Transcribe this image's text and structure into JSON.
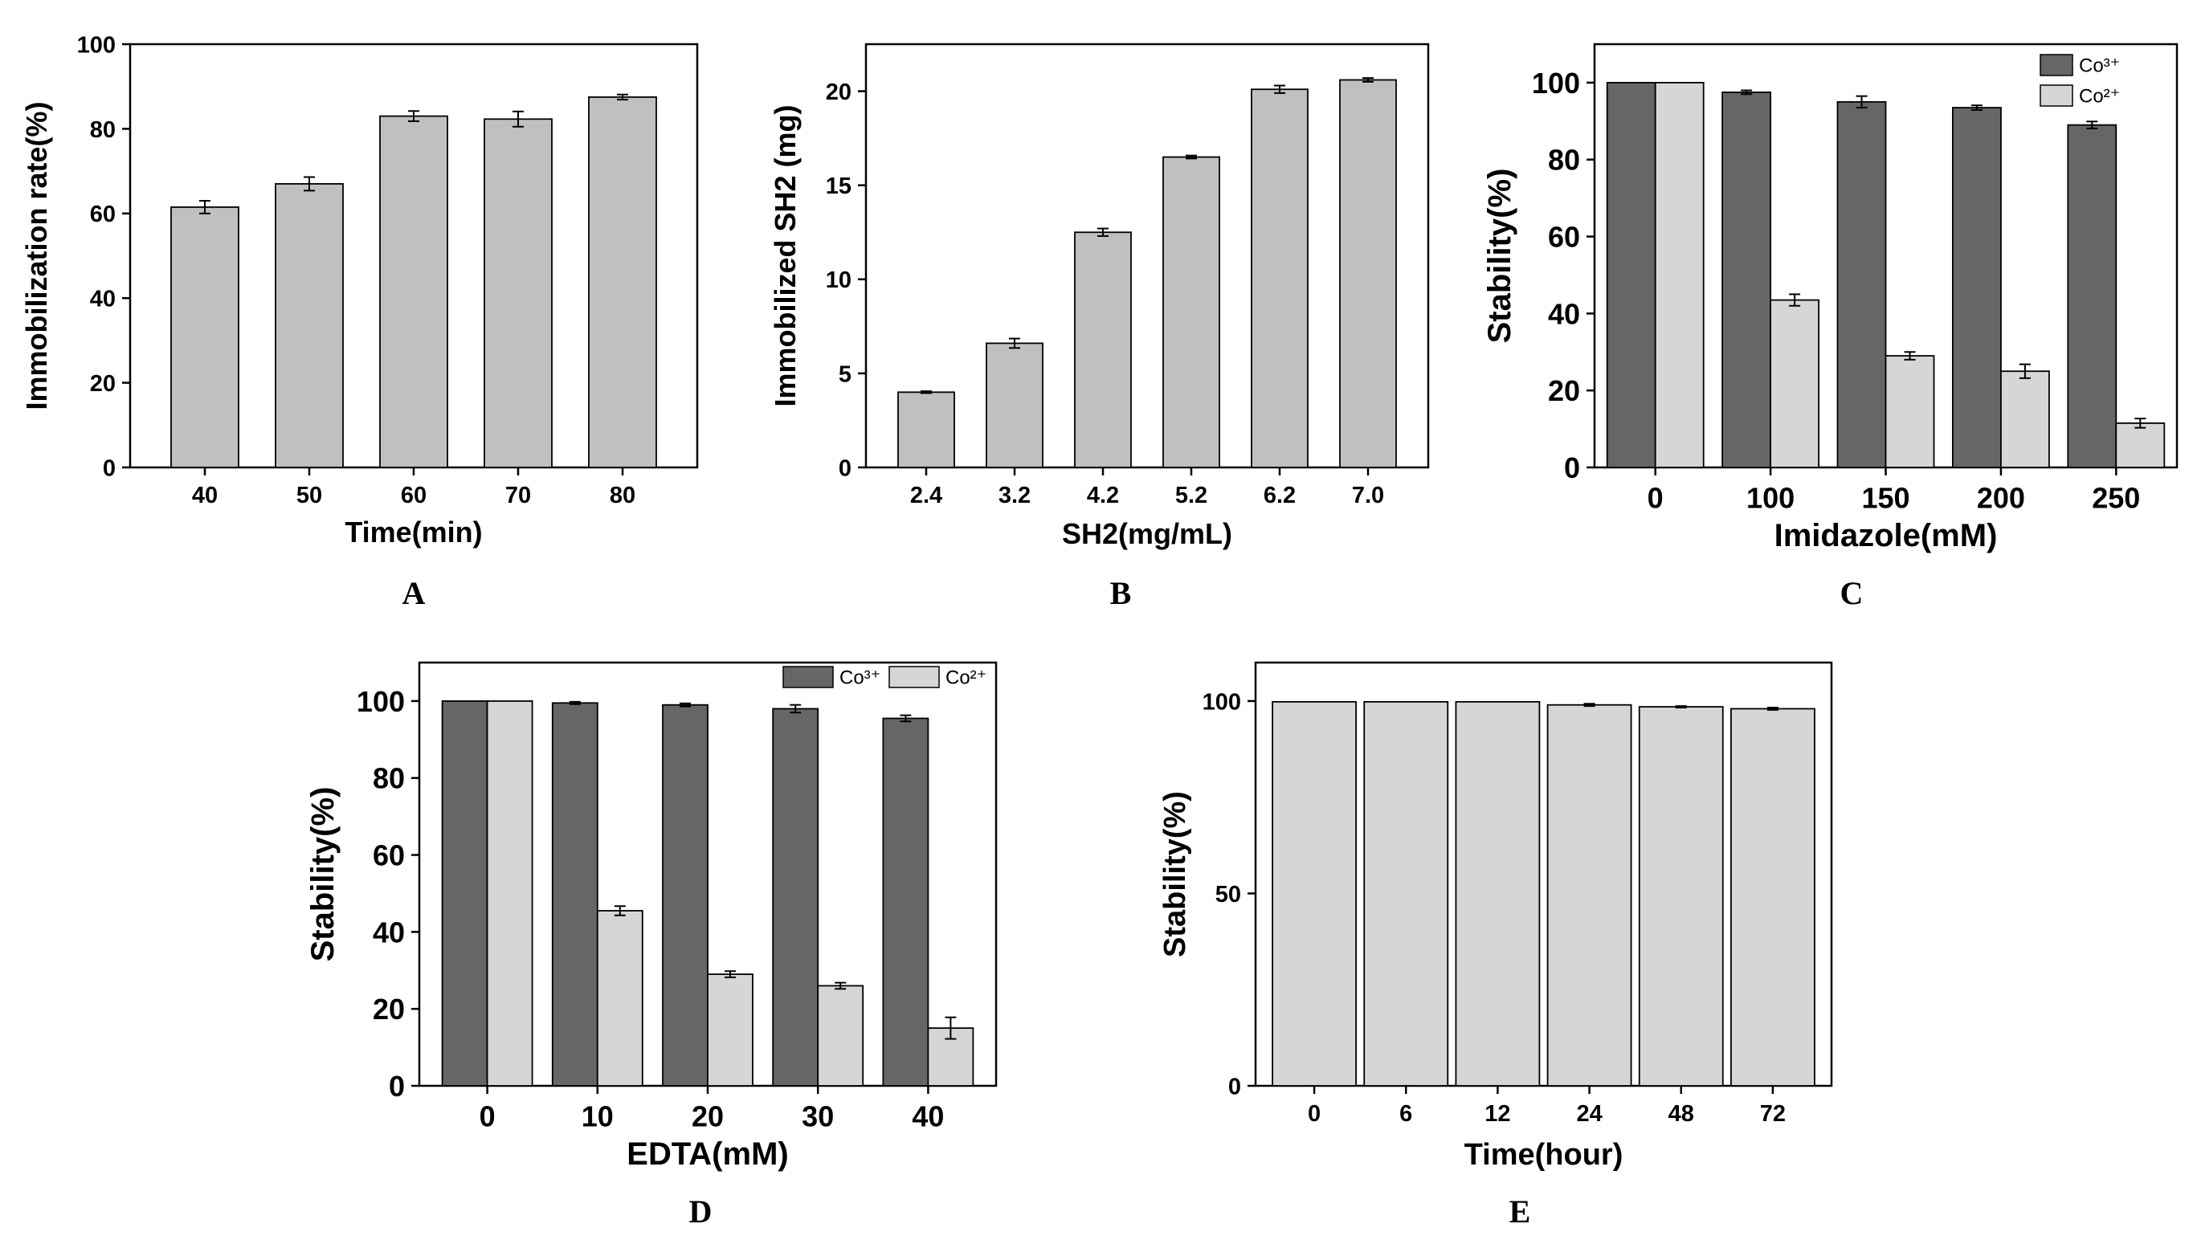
{
  "figure": {
    "background": "#ffffff",
    "bar_light": "#c0c0c0",
    "bar_dark": "#666666",
    "bar_pale": "#d6d6d6"
  },
  "chart_data": [
    {
      "id": "A",
      "panel_label": "A",
      "type": "bar",
      "categories": [
        "40",
        "50",
        "60",
        "70",
        "80"
      ],
      "series": [
        {
          "name": "",
          "values": [
            61.5,
            67,
            83,
            82.3,
            87.5
          ],
          "errors": [
            1.5,
            1.6,
            1.2,
            1.8,
            0.6
          ],
          "color": "#c0c0c0"
        }
      ],
      "title": "",
      "xlabel": "Time(min)",
      "ylabel": "Immobilization rate(%)",
      "ylim": [
        0,
        100
      ],
      "yticks": [
        0,
        20,
        40,
        60,
        80,
        100
      ],
      "legend": []
    },
    {
      "id": "B",
      "panel_label": "B",
      "type": "bar",
      "categories": [
        "2.4",
        "3.2",
        "4.2",
        "5.2",
        "6.2",
        "7.0"
      ],
      "series": [
        {
          "name": "",
          "values": [
            4.0,
            6.6,
            12.5,
            16.5,
            20.1,
            20.6
          ],
          "errors": [
            0.05,
            0.25,
            0.2,
            0.08,
            0.2,
            0.1
          ],
          "color": "#c0c0c0"
        }
      ],
      "title": "",
      "xlabel": "SH2(mg/mL)",
      "ylabel": "Immobilized SH2 (mg)",
      "ylim": [
        0,
        22.5
      ],
      "yticks": [
        0,
        5,
        10,
        15,
        20
      ],
      "legend": []
    },
    {
      "id": "C",
      "panel_label": "C",
      "type": "bar",
      "categories": [
        "0",
        "100",
        "150",
        "200",
        "250"
      ],
      "series": [
        {
          "name": "Co³⁺",
          "values": [
            100,
            97.5,
            95,
            93.5,
            89
          ],
          "errors": [
            0,
            0.5,
            1.5,
            0.6,
            0.9
          ],
          "color": "#666666"
        },
        {
          "name": "Co²⁺",
          "values": [
            100,
            43.5,
            29,
            25,
            11.5
          ],
          "errors": [
            0,
            1.5,
            1,
            1.8,
            1.2
          ],
          "color": "#d6d6d6"
        }
      ],
      "title": "",
      "xlabel": "Imidazole(mM)",
      "ylabel": "Stability(%)",
      "ylim": [
        0,
        110
      ],
      "yticks": [
        0,
        20,
        40,
        60,
        80,
        100
      ],
      "legend": [
        "Co³⁺",
        "Co²⁺"
      ]
    },
    {
      "id": "D",
      "panel_label": "D",
      "type": "bar",
      "categories": [
        "0",
        "10",
        "20",
        "30",
        "40"
      ],
      "series": [
        {
          "name": "Co³⁺",
          "values": [
            100,
            99.5,
            99,
            98,
            95.5
          ],
          "errors": [
            0,
            0.3,
            0.4,
            1.0,
            0.8
          ],
          "color": "#666666"
        },
        {
          "name": "Co²⁺",
          "values": [
            100,
            45.5,
            29,
            26,
            15
          ],
          "errors": [
            0,
            1.2,
            0.8,
            0.8,
            2.8
          ],
          "color": "#d6d6d6"
        }
      ],
      "title": "",
      "xlabel": "EDTA(mM)",
      "ylabel": "Stability(%)",
      "ylim": [
        0,
        110
      ],
      "yticks": [
        0,
        20,
        40,
        60,
        80,
        100
      ],
      "legend": [
        "Co³⁺",
        "Co²⁺"
      ]
    },
    {
      "id": "E",
      "panel_label": "E",
      "type": "bar",
      "categories": [
        "0",
        "6",
        "12",
        "24",
        "48",
        "72"
      ],
      "series": [
        {
          "name": "",
          "values": [
            99.8,
            99.8,
            99.8,
            99,
            98.5,
            98
          ],
          "errors": [
            0,
            0,
            0,
            0.3,
            0.2,
            0.3
          ],
          "color": "#d6d6d6"
        }
      ],
      "title": "",
      "xlabel": "Time(hour)",
      "ylabel": "Stability(%)",
      "ylim": [
        0,
        110
      ],
      "yticks": [
        0,
        50,
        100
      ],
      "legend": []
    }
  ]
}
